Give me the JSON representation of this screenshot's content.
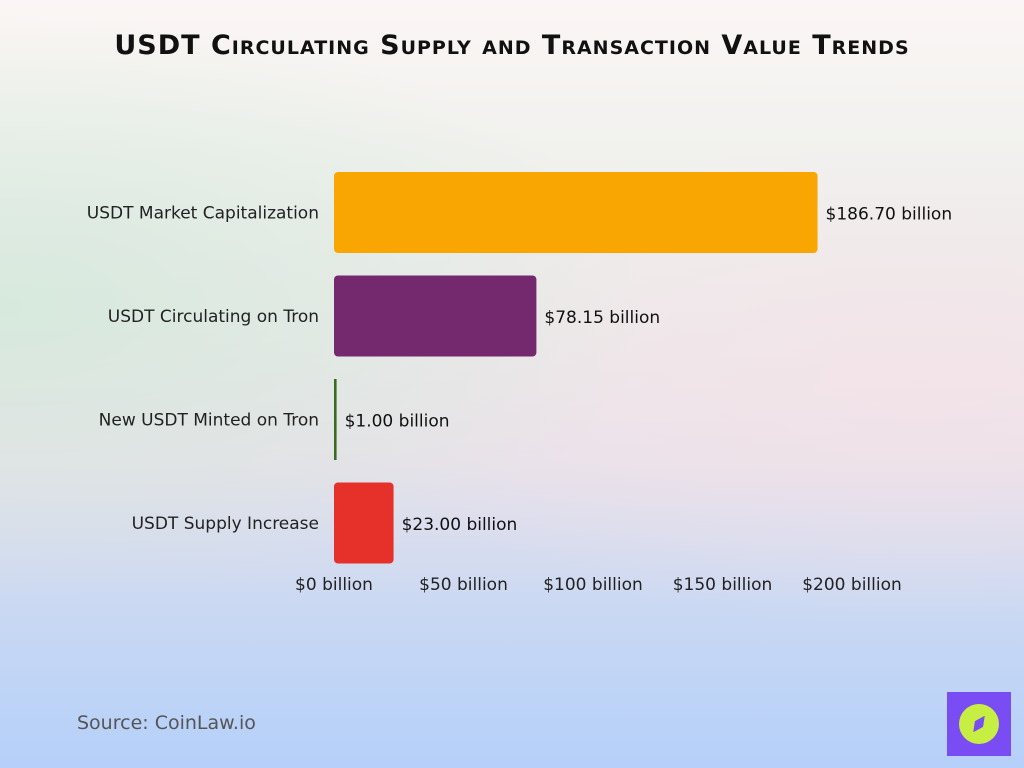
{
  "chart_data": {
    "type": "bar",
    "orientation": "horizontal",
    "title": "USDT Circulating Supply and Transaction Value Trends",
    "categories": [
      "USDT Market Capitalization",
      "USDT Circulating on Tron",
      "New USDT Minted on Tron",
      "USDT Supply Increase"
    ],
    "values": [
      186.7,
      78.15,
      1.0,
      23.0
    ],
    "data_labels": [
      "$186.70 billion",
      "$78.15 billion",
      "$1.00 billion",
      "$23.00 billion"
    ],
    "colors": [
      "#f9a602",
      "#74296f",
      "#3b6b1e",
      "#e6302a"
    ],
    "xlim": [
      0,
      200
    ],
    "x_ticks": [
      0,
      50,
      100,
      150,
      200
    ],
    "x_tick_labels": [
      "$0 billion",
      "$50 billion",
      "$100 billion",
      "$150 billion",
      "$200 billion"
    ],
    "xlabel": "",
    "ylabel": "",
    "grid": false,
    "legend": "none"
  },
  "source": "Source: CoinLaw.io",
  "logo": {
    "icon": "compass-icon",
    "bg": "#7a4cf4",
    "fg": "#c7ee43"
  }
}
